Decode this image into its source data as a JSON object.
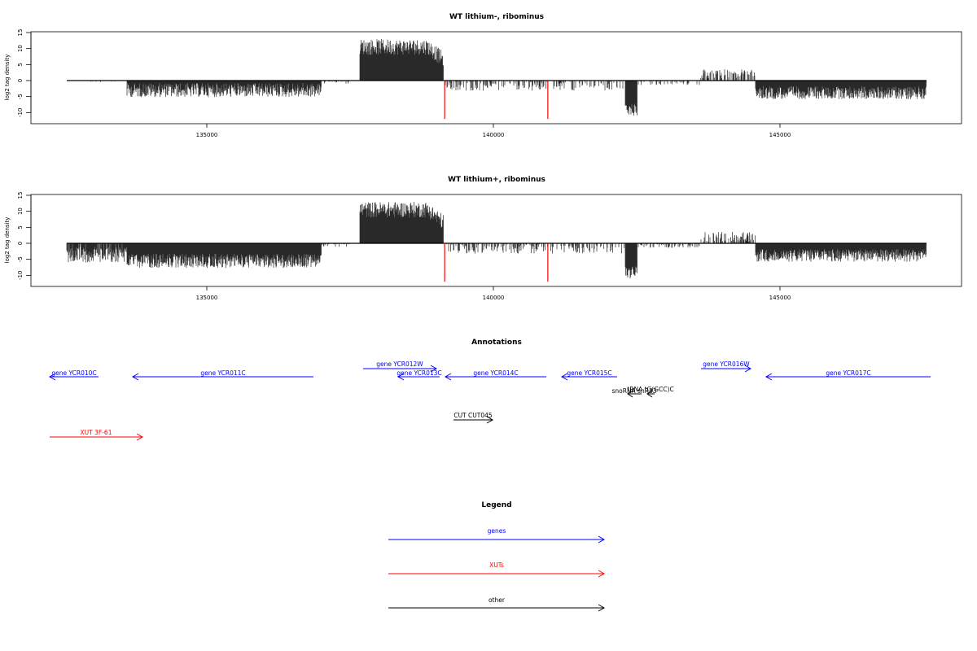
{
  "chart_data": [
    {
      "type": "bar",
      "title": "WT lithium-, ribominus",
      "xlabel": "",
      "ylabel": "log2 tag density",
      "xlim": [
        132300,
        147700
      ],
      "ylim": [
        -12,
        15
      ],
      "y_ticks": [
        15,
        10,
        5,
        0,
        -5,
        -10
      ],
      "x_ticks": [
        135000,
        140000,
        145000
      ],
      "grid": false,
      "series": [
        {
          "x": 138000,
          "y": 11
        },
        {
          "x": 138500,
          "y": 10
        },
        {
          "x": 138900,
          "y": 8
        },
        {
          "x": 135000,
          "y": -4
        },
        {
          "x": 145500,
          "y": -4
        },
        {
          "x": 142500,
          "y": -10
        },
        {
          "x": 139150,
          "y": -12
        },
        {
          "x": 140950,
          "y": -12
        }
      ]
    },
    {
      "type": "bar",
      "title": "WT lithium+, ribominus",
      "xlabel": "",
      "ylabel": "log2 tag density",
      "xlim": [
        132300,
        147700
      ],
      "ylim": [
        -12,
        15
      ],
      "y_ticks": [
        15,
        10,
        5,
        0,
        -5,
        -10
      ],
      "x_ticks": [
        135000,
        140000,
        145000
      ],
      "grid": false,
      "series": [
        {
          "x": 138000,
          "y": 13
        },
        {
          "x": 138500,
          "y": 11
        },
        {
          "x": 138900,
          "y": 8
        },
        {
          "x": 135000,
          "y": -7
        },
        {
          "x": 145500,
          "y": -5
        },
        {
          "x": 142500,
          "y": -11
        },
        {
          "x": 139150,
          "y": -12
        },
        {
          "x": 140950,
          "y": -12
        }
      ]
    }
  ],
  "annotations": {
    "title": "Annotations",
    "features": [
      {
        "label": "gene YCR010C",
        "class": "gene",
        "strand": "-"
      },
      {
        "label": "gene YCR011C",
        "class": "gene",
        "strand": "-"
      },
      {
        "label": "gene YCR012W",
        "class": "gene",
        "strand": "+"
      },
      {
        "label": "gene YCR013C",
        "class": "gene",
        "strand": "-"
      },
      {
        "label": "gene YCR014C",
        "class": "gene",
        "strand": "-"
      },
      {
        "label": "gene YCR015C",
        "class": "gene",
        "strand": "-"
      },
      {
        "label": "gene YCR016W",
        "class": "gene",
        "strand": "+"
      },
      {
        "label": "gene YCR017C",
        "class": "gene",
        "strand": "-"
      },
      {
        "label": "snoRNA snR33",
        "class": "other",
        "strand": "-"
      },
      {
        "label": "tRNA tG(GCC)C",
        "class": "other",
        "strand": "-"
      },
      {
        "label": "CUT CUT045",
        "class": "other",
        "strand": "+"
      },
      {
        "label": "XUT 3F-61",
        "class": "xut",
        "strand": "+"
      }
    ]
  },
  "legend": {
    "title": "Legend",
    "items": [
      {
        "label": "genes",
        "color": "#0000ff"
      },
      {
        "label": "XUTs",
        "color": "#ff0000"
      },
      {
        "label": "other",
        "color": "#000000"
      }
    ]
  },
  "colors": {
    "gene": "#0000ff",
    "xut": "#ff0000",
    "other": "#000000",
    "signal": "#000000",
    "marker": "#ff0000"
  }
}
